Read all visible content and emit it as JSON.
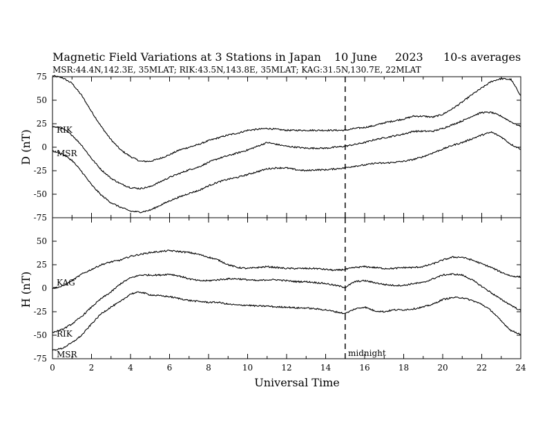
{
  "title": {
    "main": "Magnetic Field Variations at 3 Stations in Japan",
    "date": "10 June",
    "year": "2023",
    "avg": "10-s averages"
  },
  "subtitle": "MSR:44.4N,142.3E, 35MLAT;  RIK:43.5N,143.8E, 35MLAT;  KAG:31.5N,130.7E, 22MLAT",
  "xlabel": "Universal Time",
  "midnight_label": "midnight",
  "chart_data": [
    {
      "type": "line",
      "ylabel": "D (nT)",
      "xlim": [
        0,
        24
      ],
      "ylim": [
        -75,
        75
      ],
      "x_ticks": [
        0,
        2,
        4,
        6,
        8,
        10,
        12,
        14,
        16,
        18,
        20,
        22,
        24
      ],
      "y_ticks": [
        75,
        50,
        25,
        0,
        -25,
        -50,
        -75
      ],
      "vline_x": 15,
      "series": [
        {
          "name": "",
          "x": [
            0,
            0.5,
            1,
            1.5,
            2,
            2.5,
            3,
            3.5,
            4,
            4.5,
            5,
            5.5,
            6,
            6.5,
            7,
            7.5,
            8,
            8.5,
            9,
            9.5,
            10,
            10.5,
            11,
            11.5,
            12,
            12.5,
            13,
            13.5,
            14,
            14.5,
            15,
            15.5,
            16,
            16.5,
            17,
            17.5,
            18,
            18.5,
            19,
            19.5,
            20,
            20.5,
            21,
            21.5,
            22,
            22.5,
            23,
            23.5,
            24
          ],
          "y": [
            76,
            74,
            68,
            55,
            38,
            22,
            8,
            -3,
            -10,
            -15,
            -15,
            -12,
            -8,
            -3,
            0,
            3,
            7,
            10,
            13,
            15,
            18,
            19,
            20,
            19,
            18,
            18,
            18,
            18,
            18,
            18,
            18,
            20,
            21,
            23,
            26,
            28,
            30,
            33,
            33,
            32,
            35,
            41,
            48,
            56,
            63,
            70,
            73,
            72,
            55
          ]
        },
        {
          "name": "RIK",
          "x": [
            0,
            0.5,
            1,
            1.5,
            2,
            2.5,
            3,
            3.5,
            4,
            4.5,
            5,
            5.5,
            6,
            6.5,
            7,
            7.5,
            8,
            8.5,
            9,
            9.5,
            10,
            10.5,
            11,
            11.5,
            12,
            12.5,
            13,
            13.5,
            14,
            14.5,
            15,
            15.5,
            16,
            16.5,
            17,
            17.5,
            18,
            18.5,
            19,
            19.5,
            20,
            20.5,
            21,
            21.5,
            22,
            22.5,
            23,
            23.5,
            24
          ],
          "y": [
            22,
            20,
            13,
            2,
            -12,
            -24,
            -33,
            -39,
            -43,
            -44,
            -42,
            -37,
            -32,
            -28,
            -24,
            -21,
            -16,
            -12,
            -9,
            -6,
            -3,
            1,
            5,
            3,
            1,
            0,
            -1,
            -1,
            -1,
            0,
            1,
            3,
            5,
            8,
            10,
            12,
            14,
            17,
            17,
            17,
            20,
            24,
            28,
            33,
            37,
            37,
            33,
            27,
            22
          ]
        },
        {
          "name": "MSR",
          "x": [
            0,
            0.5,
            1,
            1.5,
            2,
            2.5,
            3,
            3.5,
            4,
            4.5,
            5,
            5.5,
            6,
            6.5,
            7,
            7.5,
            8,
            8.5,
            9,
            9.5,
            10,
            10.5,
            11,
            11.5,
            12,
            12.5,
            13,
            13.5,
            14,
            14.5,
            15,
            15.5,
            16,
            16.5,
            17,
            17.5,
            18,
            18.5,
            19,
            19.5,
            20,
            20.5,
            21,
            21.5,
            22,
            22.5,
            23,
            23.5,
            24
          ],
          "y": [
            -4,
            -7,
            -14,
            -26,
            -40,
            -51,
            -59,
            -64,
            -68,
            -69,
            -67,
            -62,
            -57,
            -53,
            -49,
            -46,
            -41,
            -37,
            -34,
            -32,
            -29,
            -26,
            -23,
            -22,
            -22,
            -24,
            -25,
            -24,
            -24,
            -23,
            -22,
            -20,
            -19,
            -17,
            -17,
            -16,
            -15,
            -13,
            -10,
            -6,
            -2,
            2,
            5,
            9,
            13,
            16,
            11,
            3,
            -2
          ]
        }
      ]
    },
    {
      "type": "line",
      "ylabel": "H (nT)",
      "xlim": [
        0,
        24
      ],
      "ylim": [
        -75,
        75
      ],
      "x_ticks": [
        0,
        2,
        4,
        6,
        8,
        10,
        12,
        14,
        16,
        18,
        20,
        22,
        24
      ],
      "y_ticks": [
        50,
        25,
        0,
        -25,
        -50,
        -75
      ],
      "vline_x": 15,
      "series": [
        {
          "name": "KAG",
          "x": [
            0,
            0.5,
            1,
            1.5,
            2,
            2.5,
            3,
            3.5,
            4,
            4.5,
            5,
            5.5,
            6,
            6.5,
            7,
            7.5,
            8,
            8.5,
            9,
            9.5,
            10,
            10.5,
            11,
            11.5,
            12,
            12.5,
            13,
            13.5,
            14,
            14.5,
            15,
            15.5,
            16,
            16.5,
            17,
            17.5,
            18,
            18.5,
            19,
            19.5,
            20,
            20.5,
            21,
            21.5,
            22,
            22.5,
            23,
            23.5,
            24
          ],
          "y": [
            0,
            2,
            8,
            15,
            20,
            25,
            28,
            30,
            34,
            36,
            38,
            39,
            40,
            39,
            38,
            36,
            33,
            30,
            25,
            22,
            21,
            22,
            23,
            22,
            21,
            21,
            21,
            21,
            20,
            19,
            20,
            22,
            23,
            22,
            21,
            21,
            22,
            22,
            23,
            26,
            30,
            33,
            33,
            30,
            26,
            22,
            17,
            13,
            12
          ]
        },
        {
          "name": "RIK",
          "x": [
            0,
            0.5,
            1,
            1.5,
            2,
            2.5,
            3,
            3.5,
            4,
            4.5,
            5,
            5.5,
            6,
            6.5,
            7,
            7.5,
            8,
            8.5,
            9,
            9.5,
            10,
            10.5,
            11,
            11.5,
            12,
            12.5,
            13,
            13.5,
            14,
            14.5,
            15,
            15.5,
            16,
            16.5,
            17,
            17.5,
            18,
            18.5,
            19,
            19.5,
            20,
            20.5,
            21,
            21.5,
            22,
            22.5,
            23,
            23.5,
            24
          ],
          "y": [
            -47,
            -44,
            -38,
            -30,
            -20,
            -11,
            -4,
            5,
            11,
            14,
            14,
            14,
            15,
            13,
            10,
            8,
            8,
            9,
            10,
            10,
            9,
            8,
            9,
            9,
            8,
            7,
            7,
            6,
            5,
            3,
            1,
            7,
            8,
            6,
            4,
            3,
            3,
            5,
            6,
            10,
            14,
            15,
            14,
            9,
            2,
            -5,
            -12,
            -18,
            -24
          ]
        },
        {
          "name": "MSR",
          "x": [
            0,
            0.5,
            1,
            1.5,
            2,
            2.5,
            3,
            3.5,
            4,
            4.5,
            5,
            5.5,
            6,
            6.5,
            7,
            7.5,
            8,
            8.5,
            9,
            9.5,
            10,
            10.5,
            11,
            11.5,
            12,
            12.5,
            13,
            13.5,
            14,
            14.5,
            15,
            15.5,
            16,
            16.5,
            17,
            17.5,
            18,
            18.5,
            19,
            19.5,
            20,
            20.5,
            21,
            21.5,
            22,
            22.5,
            23,
            23.5,
            24
          ],
          "y": [
            -66,
            -64,
            -58,
            -50,
            -38,
            -27,
            -20,
            -14,
            -6,
            -4,
            -7,
            -8,
            -9,
            -11,
            -13,
            -14,
            -15,
            -15,
            -17,
            -18,
            -18,
            -19,
            -19,
            -20,
            -20,
            -21,
            -21,
            -22,
            -23,
            -25,
            -27,
            -22,
            -20,
            -24,
            -25,
            -23,
            -23,
            -22,
            -20,
            -17,
            -12,
            -10,
            -10,
            -13,
            -17,
            -24,
            -35,
            -45,
            -49
          ]
        }
      ]
    }
  ]
}
